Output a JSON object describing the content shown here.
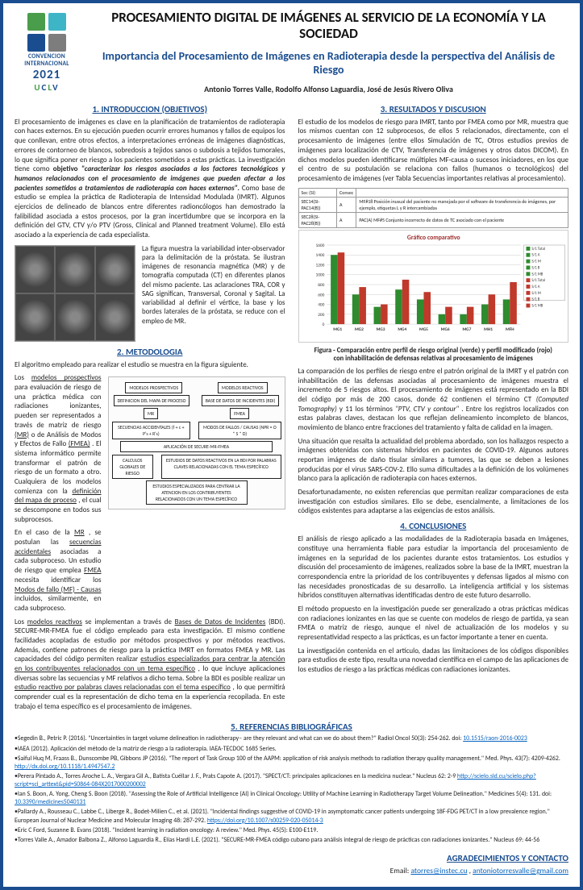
{
  "logo": {
    "colors": [
      "#4a9d4a",
      "#3db5c7",
      "#1a4d8f",
      "#7d7d7d"
    ],
    "label": "CONVENCION INTERNACIONAL",
    "year": "2021",
    "uclv": "UCLV"
  },
  "title": "PROCESAMIENTO DIGITAL DE IMÁGENES AL SERVICIO DE LA ECONOMÍA Y LA SOCIEDAD",
  "subtitle": "Importancia del Procesamiento de Imágenes en Radioterapia desde la perspectiva del Análisis de Riesgo",
  "authors": "Antonio Torres Valle, Rodolfo Alfonso Laguardia, José de Jesús Rivero Oliva",
  "sections": {
    "intro_head": "1. INTRODUCCION (OBJETIVOS)",
    "intro_p1": "El procesamiento de imágenes es clave en la planificación de tratamientos de radioterapia con haces externos. En su ejecución pueden ocurrir errores humanos y fallos de equipos los que conllevan, entre otros efectos, a interpretaciones erróneas de imágenes diagnósticas, errores de contorneo de blancos, sobredosis a tejidos sanos o subdosis a tejidos tumorales, lo que significa poner en riesgo a los pacientes sometidos a estas prácticas. La investigación tiene como",
    "intro_obj_label": "objetivo",
    "intro_obj": "\"caracterizar los riesgos asociados a los factores tecnológicos y humanos relacionados con el procesamiento de imágenes que pueden afectar a los pacientes sometidos a tratamientos de radioterapia con haces externos\".",
    "intro_p1b": "Como base de estudio se emplea la práctica de Radioterapia de Intensidad Modulada (IMRT). Algunos ejercicios de delineado de blancos entre diferentes radioncólogos han demostrado la falibilidad asociada a estos procesos, por la gran incertidumbre que se incorpora en la definición del GTV, CTV y/o PTV (Gross, Clinical and Planned treatment Volume). Ello está asociado a la experiencia de cada especialista.",
    "fig1_caption": "La figura muestra la variabilidad inter-observador para la delimitación de la próstata. Se ilustran imágenes de resonancia magnética (MR) y de tomografía computada (CT) en diferentes planos del mismo paciente. Las aclaraciones TRA, COR y SAG significan, Transversal, Coronal y Sagital. La variabilidad al definir el vértice, la base y los bordes laterales de la próstata, se reduce con el empleo de MR.",
    "metod_head": "2. METODOLOGIA",
    "metod_p0": "El algoritmo empleado para realizar el estudio se muestra en la figura siguiente.",
    "metod_p1a": "Los",
    "metod_p1_u1": "modelos prospectivos",
    "metod_p1b": "para evaluación de riesgo de una práctica médica con radiaciones ionizantes, pueden ser representados a través de matriz de riesgo",
    "metod_p1_u2": "(MR)",
    "metod_p1c": "o de Análisis de Modos y Efectos de Fallo",
    "metod_p1_u3": "(FMEA)",
    "metod_p1d": ". El sistema informático permite transformar el patrón de riesgo de un formato a otro. Cualquiera de los modelos comienza con la",
    "metod_p1_u4": "definición del mapa de proceso",
    "metod_p1e": ", el cual se descompone en todos sus subprocesos.",
    "metod_p2a": "En el caso de la",
    "metod_p2_u1": "MR",
    "metod_p2b": ", se postulan las",
    "metod_p2_u2": "secuencias accidentales",
    "metod_p2c": "asociadas a cada subproceso. Un estudio de riesgo que emplea",
    "metod_p2_u3": "FMEA",
    "metod_p2d": "necesita identificar los",
    "metod_p2_u4": "Modos de fallo (MF) - Causas",
    "metod_p2e": "incluidos, similarmente, en cada subproceso.",
    "metod_p3a": "Los",
    "metod_p3_u1": "modelos reactivos",
    "metod_p3b": "se implementan a través de",
    "metod_p3_u2": "Bases de Datos de Incidentes",
    "metod_p3c": "(BDI). SECURE-MR-FMEA fue el código empleado para esta investigación. El mismo contiene facilidades acopladas de estudio por métodos prospectivos y por métodos reactivos. Además, contiene patrones de riesgo para la práctica IMRT en formatos FMEA y MR. Las capacidades del código permiten realizar",
    "metod_p3_u3": "estudios especializados para centrar la atención en los contribuyentes relacionados con un tema específico",
    "metod_p3d": ", lo que incluye aplicaciones diversas sobre las secuencias y MF relativos a dicho tema. Sobre la BDI es posible realizar un",
    "metod_p3_u4": "estudio reactivo por palabras claves relacionadas con el tema específico",
    "metod_p3e": ", lo que permitirá comprender cual es la representación de dicho tema en la experiencia recopilada. En este trabajo el tema específico es el procesamiento de imágenes.",
    "result_head": "3. RESULTADOS Y DISCUSION",
    "result_p1": "El estudio de los modelos de riesgo para IMRT, tanto por FMEA como por MR, muestra que los mismos cuentan con 12 subprocesos, de ellos 5 relacionados, directamente, con el procesamiento de imágenes (entre ellos Simulación de TC, Otros estudios previos de imágenes para localización de CTV, Transferencia de imágenes y otros datos DICOM). En dichos modelos pueden identificarse múltiples MF-causa o sucesos iniciadores, en los que el centro de su postulación se relaciona con fallos (humanos o tecnológicos) del procesamiento de imágenes (ver Tabla Secuencias importantes relativas al procesamiento).",
    "table": {
      "rows": [
        [
          "Sec (SI)",
          "Consec",
          ""
        ],
        [
          "SEC14(SI-PAC14(B))",
          "A",
          "MF#18 Posición inusual del paciente no manejada por el software de transferencia de imágenes, por ejemplo, etiquetas L y R intercambiadas"
        ],
        [
          "SEC28(SI-PAC28(B))",
          "A",
          "PAC(A) MF#5 Conjunto incorrecto de datos de TC asociado con el paciente"
        ]
      ]
    },
    "chart": {
      "title": "Gráfico comparativo",
      "ylim": [
        0,
        1600
      ],
      "ystep": 200,
      "categories": [
        "MG1",
        "MG2",
        "MG3",
        "MG4",
        "MG5",
        "MG6",
        "MG7",
        "MH1",
        "MFH"
      ],
      "series_green": [
        1400,
        600,
        350,
        700,
        500,
        200,
        200,
        400,
        500
      ],
      "series_red": [
        1450,
        750,
        400,
        900,
        650,
        350,
        350,
        600,
        850
      ],
      "legend": [
        "S/1 Total",
        "S/1 A",
        "S/1 M",
        "S/1 B",
        "S/1 MB",
        "S/1 Total",
        "S/1 A",
        "S/1 M",
        "S/1 B",
        "S/1 MB"
      ],
      "colors": {
        "green": "#2e8b2e",
        "red": "#c0392b",
        "bg": "#ffffff",
        "grid": "#cccccc"
      },
      "caption_a": "Figura - Comparación entre perfil de riesgo original (verde) y perfil modificado (rojo)",
      "caption_b": "con inhabilitación de defensas relativas al procesamiento de imágenes"
    },
    "result_p2a": "La comparación de los perfiles de riesgo entre el patrón original de la IMRT y el patrón con inhabilitación de las defensas asociadas al procesamiento de imágenes muestra el incremento de 5 riesgos altos. El procesamiento de imágenes está representado en la BDI del código por más de 200 casos, donde 62 contienen el término CT",
    "result_p2_i": "(Computed Tomography)",
    "result_p2b": "y 11 los términos",
    "result_p2_i2": "\"PTV, CTV y contour\"",
    "result_p2c": ". Entre los registros localizados con estas palabras claves, destacan los que reflejan delineamiento incompleto de blancos, movimiento de blanco entre fracciones del tratamiento y falta de calidad en la imagen.",
    "result_p3": "Una situación que resalta la actualidad del problema abordado, son los hallazgos respecto a imágenes obtenidas con sistemas híbridos en pacientes de COVID-19. Algunos autores reportan imágenes de daño tisular similares a tumores, las que se deben a lesiones producidas por el virus SARS-COV-2. Ello suma dificultades a la definición de los volúmenes blanco para la aplicación de radioterapia con haces externos.",
    "result_p4": "Desafortunadamente, no existen referencias que permitan realizar comparaciones de esta investigación con estudios similares. Ello se debe, esencialmente, a limitaciones de los códigos existentes para adaptarse a las exigencias de estos análisis.",
    "concl_head": "4. CONCLUSIONES",
    "concl_p1": "El análisis de riesgo aplicado a las modalidades de la Radioterapia basada en Imágenes, constituye una herramienta fiable para estudiar la importancia del procesamiento de imágenes en la seguridad de los pacientes durante estos tratamientos. Los estudios y discusión del procesamiento de imágenes, realizados sobre la base de la IMRT, muestran la correspondencia entre la prioridad de los contribuyentes y defensas ligados al mismo con las necesidades pronosticadas de su desarrollo. La inteligencia artificial y los sistemas híbridos constituyen alternativas identificadas dentro de este futuro desarrollo.",
    "concl_p2": "El método propuesto en la investigación puede ser generalizado a otras prácticas médicas con radiaciones ionizantes en las que se cuente con modelos de riesgo de partida, ya sean FMEA o matriz de riesgo, aunque el nivel de actualización de los modelos y su representatividad respecto a las prácticas, es un factor importante a tener en cuenta.",
    "concl_p3": "La investigación contenida en el artículo, dadas las limitaciones de los códigos disponibles para estudios de este tipo, resulta una novedad científica en el campo de las aplicaciones de los estudios de riesgo a las prácticas médicas con radiaciones ionizantes.",
    "refs_head": "5. REFERENCIAS BIBLIOGRÁFICAS",
    "refs": [
      {
        "text": "•Segedin B., Petric P. (2016). \"Uncertainties in target volume delineation in radiotherapy– are they relevant and what can we do about them?\" Radiol Oncol 50(3): 254-262. doi: ",
        "link": "10.1515/raon-2016-0023"
      },
      {
        "text": "•IAEA (2012). Aplicación del método de la matriz de riesgo a la radioterapia. IAEA-TECDOC 1685 Series."
      },
      {
        "text": "•Saiful Huq M, Fraass B., Dunscombe PB, Gibbons JP (2016). \"The report of Task Group 100 of the AAPM: application of risk analysis methods to radiation therapy quality management.\" Med. Phys. 43(7): 4209-4262. ",
        "link": "http://dx.doi.org/10.1118/1.4947547.2"
      },
      {
        "text": "•Perera Pintado A., Torres Aroche L. A., Vergara Gil A., Batista Cuéllar J. F., Prats Capote A. (2017). \"SPECT/CT: principales aplicaciones en la medicina nuclear.\" Nucleus 62: 2-9 ",
        "link": "http://scielo.sld.cu/scielo.php?script=sci_arttext&pid=S0864-084X2017000200002"
      },
      {
        "text": "•Ian S. Boon, A. Yong, Cheng S. Boon (2018). \"Assessing the Role of Artificial Intelligence (AI) in Clinical Oncology: Utility of Machine Learning in Radiotherapy Target Volume Delineation.\" Medicines 5(4): 131. doi: ",
        "link": "10.3390/medicines5040131"
      },
      {
        "text": "•Pallardy A., Rousseau C., Labbe C., Liberge R., Bodet-Milien C., et al. (2021). \"Incidental findings suggestive of COVID-19 in asymptomatic cancer patients undergoing 18F-FDG PET/CT in a low prevalence region.\" European Journal of Nuclear Medicine and Molecular Imaging 48: 287-292. ",
        "link": "https://doi.org/10.1007/s00259-020-05014-3"
      },
      {
        "text": "•Eric C Ford, Suzanne B. Evans (2018). \"Incident learning in radiation oncology: A review.\" Med. Phys. 45(5): E100-E119."
      },
      {
        "text": "•Torres Valle A., Amador Balbona Z., Alfonso Laguardia R., Elías Hardi L.E. (2021). \"SECURE-MR-FMEA código cubano para análisis integral de riesgo de prácticas con radiaciones ionizantes.\" Nucleus 69: 44-56"
      }
    ],
    "footer_head": "AGRADECIMIENTOS Y CONTACTO",
    "email_label": "Email: ",
    "email1": "atorres@instec.cu",
    "email_sep": " , ",
    "email2": "antoniotorresvalle@gmail.com"
  },
  "diagram": {
    "top": [
      "MODELOS PROSPECTIVOS",
      "MODELOS REACTIVOS"
    ],
    "mid": [
      "DEFINICION DEL MAPA DE PROCESO",
      "BASE DE DATOS DE INCIDENTES (BDI)"
    ],
    "sub": [
      "MR",
      "FMEA"
    ],
    "sub2": [
      "SECUENCIAS ACCIDENTALES (f + c + P's + R's)",
      "MODOS DE FALLOS / CAUSAS (NPR = O * S * D)"
    ],
    "center": "APLICACIÓN DE SECURE-MR-FMEA",
    "bottom": [
      "CALCULOS GLOBALES DE RIESGO",
      "ESTUDIOS DE DATOS REACTIVOS EN LA BDI POR PALABRAS CLAVES RELACIONADAS CON EL TEMA ESPECÍFICO"
    ],
    "bottom2": "ESTUDIOS ESPECIALIZADOS PARA CENTRAR LA ATENCION EN LOS CONTRIBUYENTES RELACIONADOS CON UN TEMA ESPECÍFICO"
  }
}
